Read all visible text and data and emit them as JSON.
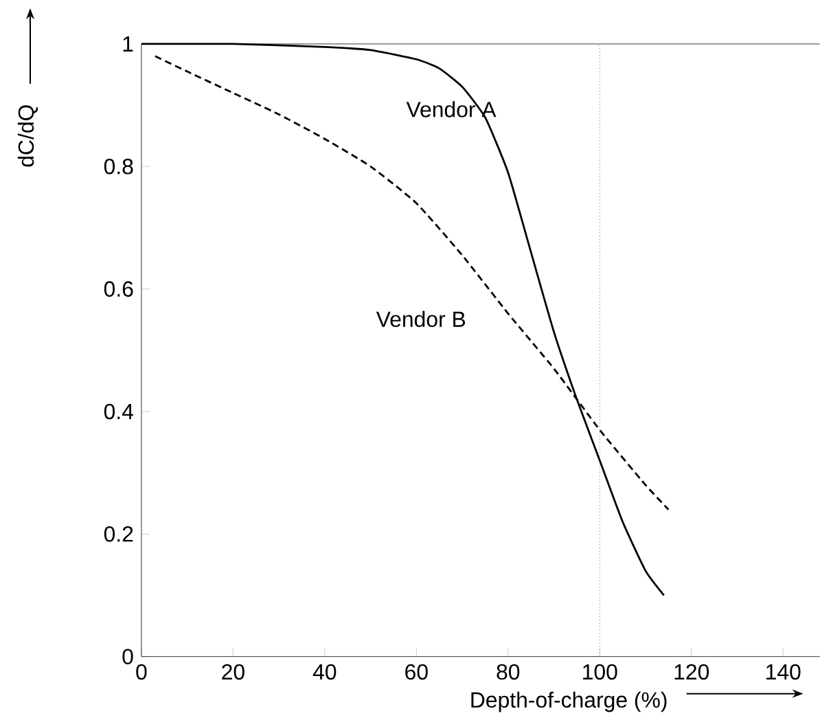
{
  "chart_data": {
    "type": "line",
    "xlabel": "Depth-of-charge (%)",
    "ylabel": "dC/dQ",
    "xlim": [
      0,
      148
    ],
    "ylim": [
      0,
      1
    ],
    "xticks": [
      0,
      20,
      40,
      60,
      80,
      100,
      120,
      140
    ],
    "yticks": [
      0,
      0.2,
      0.4,
      0.6,
      0.8,
      1
    ],
    "grid": false,
    "legend": false,
    "marker": "none",
    "series": [
      {
        "name": "Vendor A",
        "color": "#000000",
        "line_style": "solid",
        "x": [
          0,
          20,
          40,
          50,
          60,
          65,
          70,
          75,
          80,
          85,
          90,
          95,
          100,
          105,
          110,
          114
        ],
        "values": [
          1.0,
          1.0,
          0.995,
          0.99,
          0.975,
          0.96,
          0.93,
          0.88,
          0.79,
          0.66,
          0.53,
          0.42,
          0.32,
          0.22,
          0.14,
          0.1
        ]
      },
      {
        "name": "Vendor B",
        "color": "#000000",
        "line_style": "dashed",
        "x": [
          3,
          10,
          20,
          30,
          40,
          50,
          60,
          70,
          80,
          90,
          100,
          110,
          115
        ],
        "values": [
          0.98,
          0.955,
          0.92,
          0.885,
          0.845,
          0.8,
          0.74,
          0.655,
          0.56,
          0.47,
          0.37,
          0.28,
          0.24
        ]
      }
    ],
    "ref_lines": [
      {
        "axis": "x",
        "value": 100,
        "line_style": "dotted",
        "color": "#000000"
      }
    ]
  }
}
